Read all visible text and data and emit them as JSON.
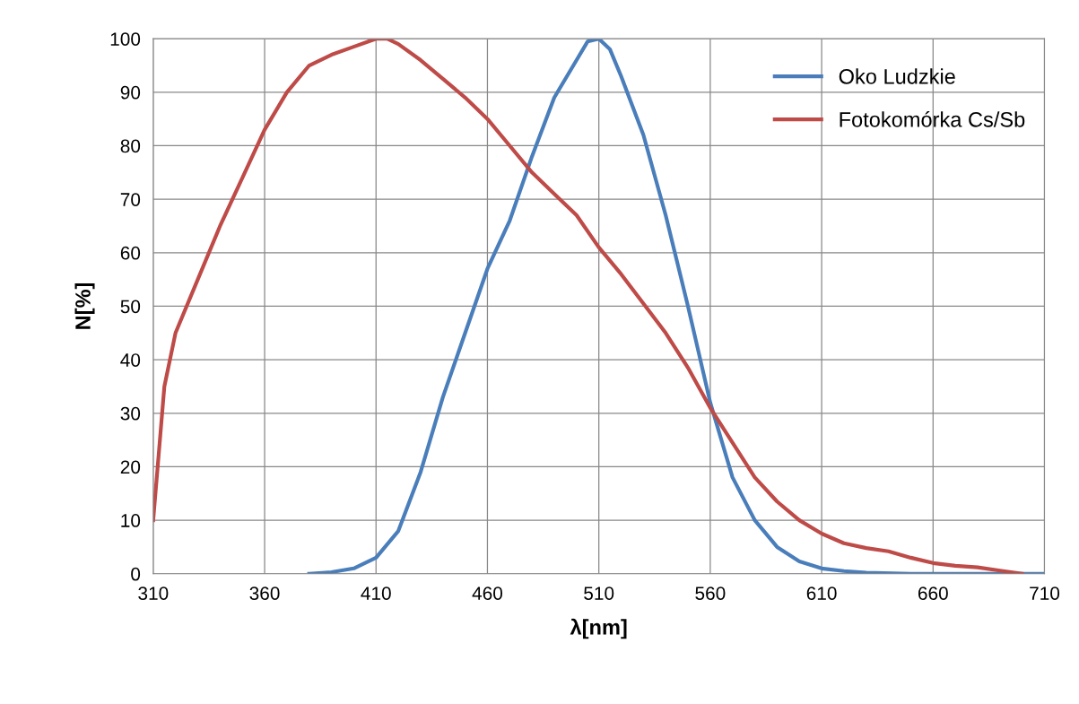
{
  "chart_data": {
    "type": "line",
    "xlabel": "λ[nm]",
    "ylabel": "N[%]",
    "xlim": [
      310,
      710
    ],
    "xticks": [
      310,
      360,
      410,
      460,
      510,
      560,
      610,
      660,
      710
    ],
    "ylim": [
      0,
      100
    ],
    "yticks": [
      0,
      10,
      20,
      30,
      40,
      50,
      60,
      70,
      80,
      90,
      100
    ],
    "grid": true,
    "legend": "top right",
    "marker": "none",
    "line_style": "solid",
    "series": [
      {
        "name": "Oko Ludzkie",
        "color": "#4a7ebb",
        "x": [
          380,
          390,
          400,
          410,
          420,
          430,
          440,
          450,
          460,
          470,
          480,
          490,
          500,
          505,
          510,
          515,
          520,
          530,
          540,
          550,
          560,
          570,
          580,
          590,
          600,
          610,
          620,
          630,
          650,
          710
        ],
        "values": [
          0,
          0.3,
          1,
          3,
          8,
          19,
          33,
          45,
          57,
          66,
          78,
          89,
          96,
          99.5,
          100,
          98,
          93,
          82,
          67,
          50,
          32,
          18,
          10,
          5,
          2.3,
          1,
          0.5,
          0.2,
          0,
          0
        ]
      },
      {
        "name": "Fotokomórka Cs/Sb",
        "color": "#be4b48",
        "x": [
          310,
          315,
          320,
          330,
          340,
          350,
          360,
          370,
          380,
          390,
          400,
          410,
          415,
          420,
          430,
          440,
          450,
          460,
          470,
          480,
          490,
          500,
          510,
          520,
          530,
          540,
          550,
          560,
          570,
          580,
          590,
          600,
          610,
          620,
          630,
          640,
          650,
          660,
          670,
          680,
          690,
          700
        ],
        "values": [
          10,
          35,
          45,
          55,
          65,
          74,
          83,
          90,
          95,
          97,
          98.5,
          100,
          100,
          99,
          96,
          92.5,
          89,
          85,
          80,
          75,
          71,
          67,
          61,
          56,
          50.5,
          45,
          38.5,
          31,
          24.5,
          18,
          13.5,
          10,
          7.5,
          5.7,
          4.8,
          4.2,
          3,
          2,
          1.5,
          1.2,
          0.6,
          0
        ]
      }
    ]
  }
}
